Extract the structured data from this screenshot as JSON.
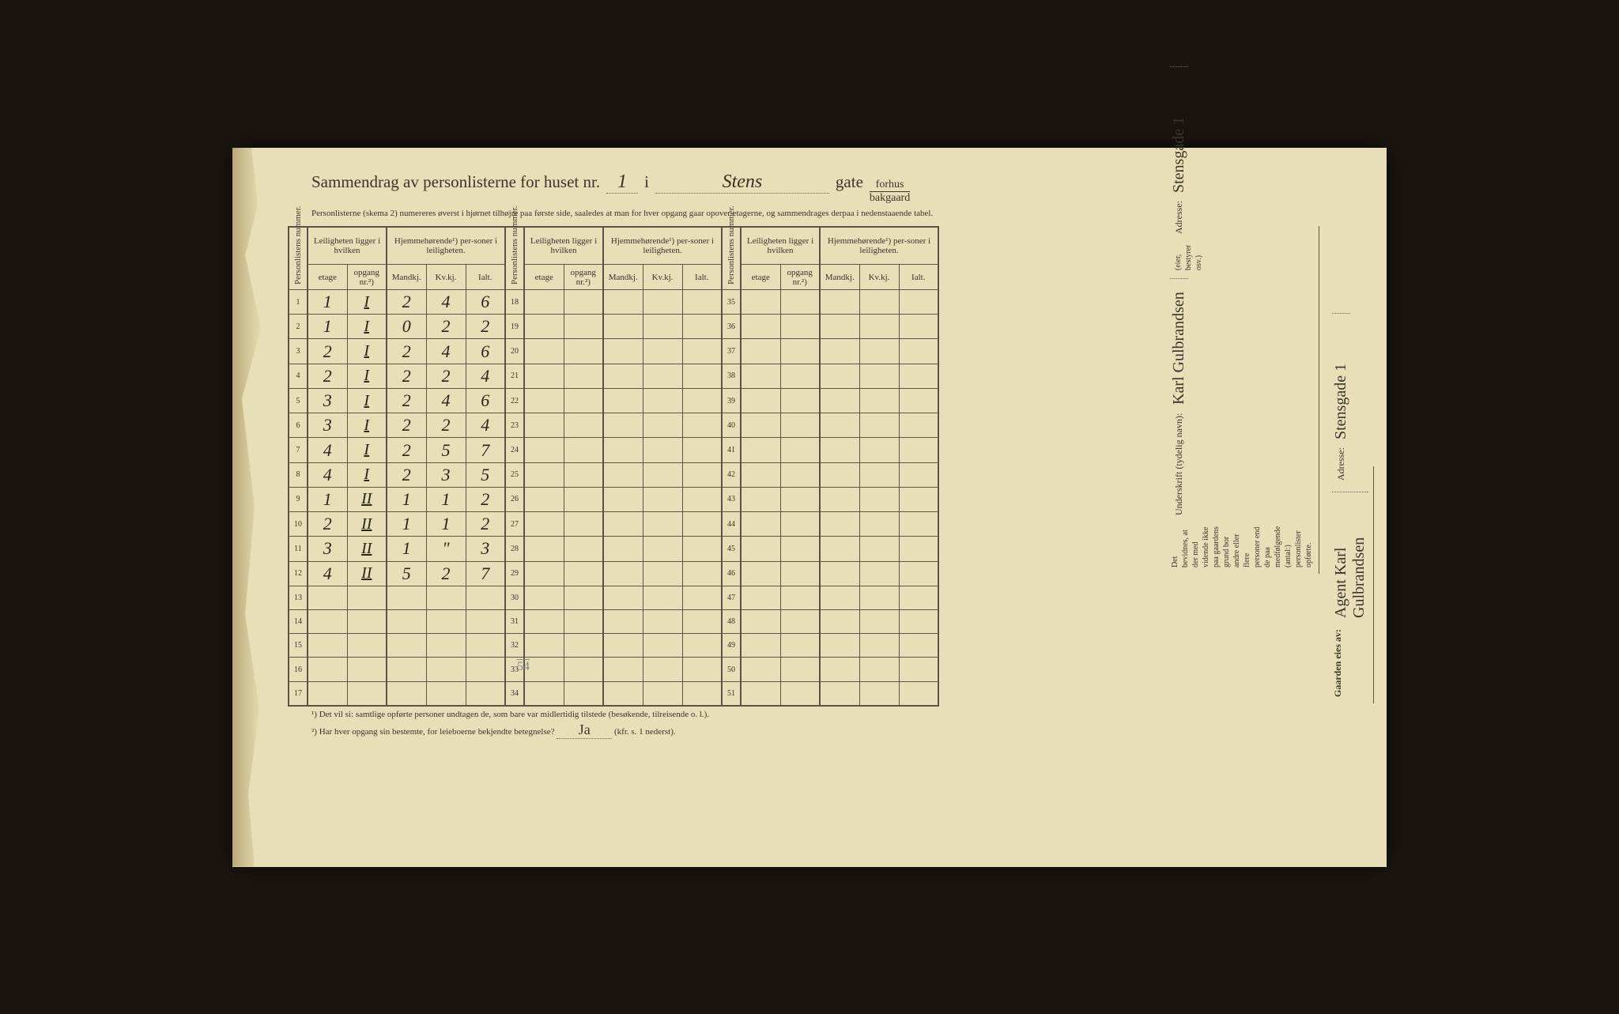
{
  "header": {
    "title_pre": "Sammendrag av personlisterne for huset nr.",
    "huset_nr": "1",
    "i": "i",
    "street": "Stens",
    "gate": "gate",
    "forhus": "forhus",
    "bakgaard": "bakgaard"
  },
  "subheader": "Personlisterne (skema 2) numereres øverst i hjørnet tilhøjre paa første side, saaledes at man for hver opgang gaar opover etagerne, og sammendrages derpaa i nedenstaaende tabel.",
  "col_headers": {
    "personlistens_nummer": "Personlistens nummer.",
    "leiligheten": "Leiligheten ligger i hvilken",
    "hjemme": "Hjemmehørende¹) per-soner i leiligheten.",
    "etage": "etage",
    "opgang": "opgang nr.²)",
    "mandkj": "Mandkj.",
    "kvkj": "Kv.kj.",
    "ialt": "Ialt."
  },
  "row_numbers_1": [
    "1",
    "2",
    "3",
    "4",
    "5",
    "6",
    "7",
    "8",
    "9",
    "10",
    "11",
    "12",
    "13",
    "14",
    "15",
    "16",
    "17"
  ],
  "row_numbers_2": [
    "18",
    "19",
    "20",
    "21",
    "22",
    "23",
    "24",
    "25",
    "26",
    "27",
    "28",
    "29",
    "30",
    "31",
    "32",
    "33",
    "34"
  ],
  "row_numbers_3": [
    "35",
    "36",
    "37",
    "38",
    "39",
    "40",
    "41",
    "42",
    "43",
    "44",
    "45",
    "46",
    "47",
    "48",
    "49",
    "50",
    "51"
  ],
  "rows": [
    {
      "etage": "1",
      "opgang": "I",
      "m": "2",
      "k": "4",
      "i": "6"
    },
    {
      "etage": "1",
      "opgang": "I",
      "m": "0",
      "k": "2",
      "i": "2"
    },
    {
      "etage": "2",
      "opgang": "I",
      "m": "2",
      "k": "4",
      "i": "6"
    },
    {
      "etage": "2",
      "opgang": "I",
      "m": "2",
      "k": "2",
      "i": "4"
    },
    {
      "etage": "3",
      "opgang": "I",
      "m": "2",
      "k": "4",
      "i": "6"
    },
    {
      "etage": "3",
      "opgang": "I",
      "m": "2",
      "k": "2",
      "i": "4"
    },
    {
      "etage": "4",
      "opgang": "I",
      "m": "2",
      "k": "5",
      "i": "7"
    },
    {
      "etage": "4",
      "opgang": "I",
      "m": "2",
      "k": "3",
      "i": "5"
    },
    {
      "etage": "1",
      "opgang": "II",
      "m": "1",
      "k": "1",
      "i": "2"
    },
    {
      "etage": "2",
      "opgang": "II",
      "m": "1",
      "k": "1",
      "i": "2"
    },
    {
      "etage": "3",
      "opgang": "II",
      "m": "1",
      "k": "\"",
      "i": "3"
    },
    {
      "etage": "4",
      "opgang": "II",
      "m": "5",
      "k": "2",
      "i": "7"
    },
    {
      "etage": "",
      "opgang": "",
      "m": "",
      "k": "",
      "i": ""
    },
    {
      "etage": "",
      "opgang": "",
      "m": "",
      "k": "",
      "i": ""
    },
    {
      "etage": "",
      "opgang": "",
      "m": "",
      "k": "",
      "i": ""
    },
    {
      "etage": "",
      "opgang": "",
      "m": "",
      "k": "",
      "i": ""
    },
    {
      "etage": "",
      "opgang": "",
      "m": "",
      "k": "",
      "i": ""
    }
  ],
  "pencil_total": "54",
  "footnotes": {
    "f1": "¹) Det vil si: samtlige opførte personer undtagen de, som bare var midlertidig tilstede (besøkende, tilreisende o. l.).",
    "f2_label": "²) Har hver opgang sin bestemte, for leieboerne bekjendte betegnelse?",
    "f2_answer": "Ja",
    "f2_after": "(kfr. s. 1 nederst)."
  },
  "sidebar": {
    "bevidnes": "Det bevidnes, at der med vidende ikke paa gaardens grund bor andre eller flere personer end de paa medfølgende (antal:) personlister opførte.",
    "underskrift_label": "Underskrift (tydelig navn):",
    "underskrift": "Karl Gulbrandsen",
    "eier_note": "(eier, bestyrer osv.)",
    "adresse_label": "Adresse:",
    "adresse": "Stensgade 1",
    "gaarden_label": "Gaarden eies av:",
    "gaarden_eier": "Agent Karl Gulbrandsen",
    "adresse2_label": "Adresse:",
    "adresse2": "Stensgade 1"
  }
}
